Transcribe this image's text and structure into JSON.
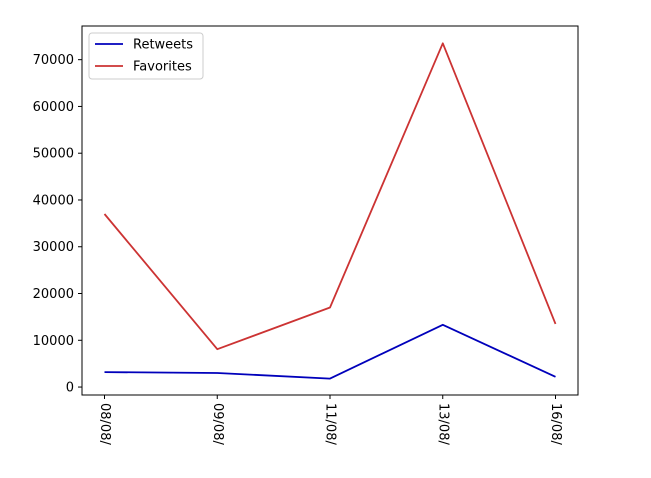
{
  "chart_data": {
    "type": "line",
    "title": "",
    "xlabel": "",
    "ylabel": "",
    "categories": [
      "08/08/",
      "09/08/",
      "11/08/",
      "13/08/",
      "16/08/"
    ],
    "series": [
      {
        "name": "Retweets",
        "color": "#0000bb",
        "values": [
          3200,
          3000,
          1800,
          13300,
          2200
        ]
      },
      {
        "name": "Favorites",
        "color": "#cc3333",
        "values": [
          37000,
          8100,
          17000,
          73500,
          13500
        ]
      }
    ],
    "ylim": [
      -1700,
      77200
    ],
    "yticks": [
      0,
      10000,
      20000,
      30000,
      40000,
      50000,
      60000,
      70000
    ],
    "grid": false,
    "legend_position": "top-left",
    "xtick_rotation": -90
  }
}
